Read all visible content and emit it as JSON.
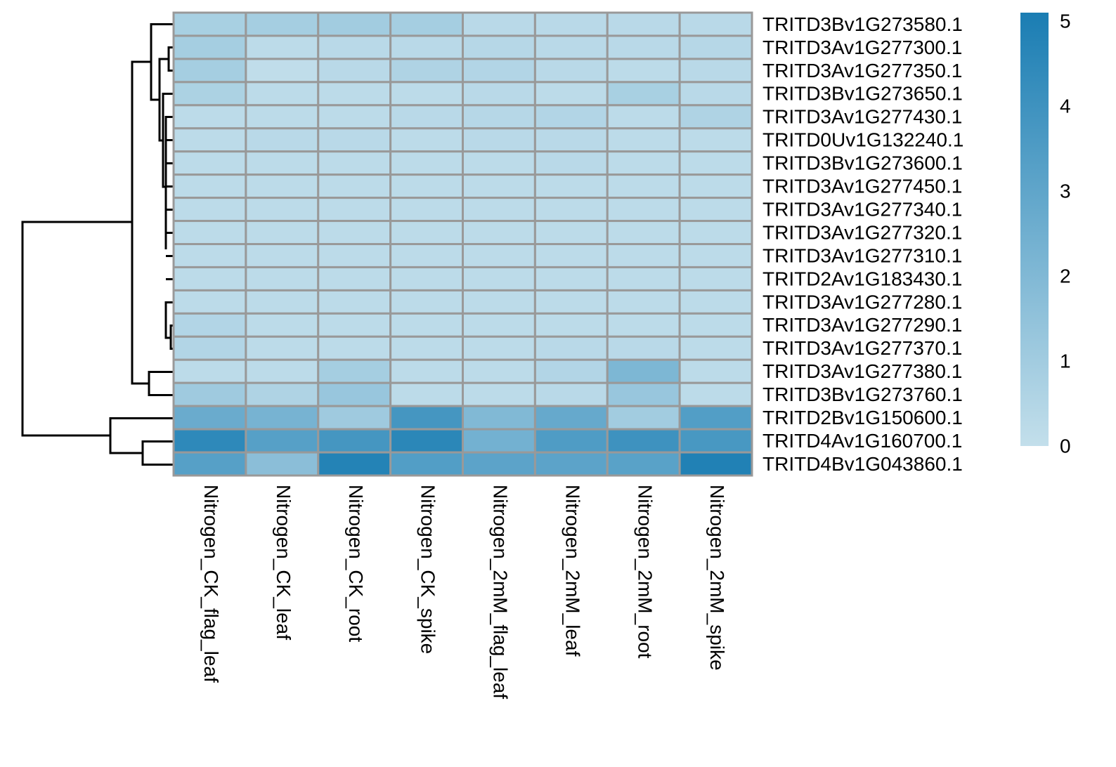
{
  "chart_data": {
    "type": "heatmap",
    "columns": [
      "Nitrogen_CK_flag_leaf",
      "Nitrogen_CK_leaf",
      "Nitrogen_CK_root",
      "Nitrogen_CK_spike",
      "Nitrogen_2mM_flag_leaf",
      "Nitrogen_2mM_leaf",
      "Nitrogen_2mM_root",
      "Nitrogen_2mM_spike"
    ],
    "rows": [
      "TRITD3Bv1G273580.1",
      "TRITD3Av1G277300.1",
      "TRITD3Av1G277350.1",
      "TRITD3Bv1G273650.1",
      "TRITD3Av1G277430.1",
      "TRITD0Uv1G132240.1",
      "TRITD3Bv1G273600.1",
      "TRITD3Av1G277450.1",
      "TRITD3Av1G277340.1",
      "TRITD3Av1G277320.1",
      "TRITD3Av1G277310.1",
      "TRITD2Av1G183430.1",
      "TRITD3Av1G277280.1",
      "TRITD3Av1G277290.1",
      "TRITD3Av1G277370.1",
      "TRITD3Av1G277380.1",
      "TRITD3Bv1G273760.1",
      "TRITD2Bv1G150600.1",
      "TRITD4Av1G160700.1",
      "TRITD4Bv1G043860.1"
    ],
    "values": [
      [
        0.8,
        0.9,
        1.0,
        0.9,
        0.3,
        0.3,
        0.3,
        0.3
      ],
      [
        0.9,
        0.2,
        0.3,
        0.3,
        0.4,
        0.3,
        0.3,
        0.4
      ],
      [
        0.9,
        0.1,
        0.3,
        0.6,
        0.5,
        0.3,
        0.2,
        0.3
      ],
      [
        0.7,
        0.2,
        0.2,
        0.2,
        0.3,
        0.2,
        0.8,
        0.3
      ],
      [
        0.2,
        0.2,
        0.2,
        0.3,
        0.4,
        0.5,
        0.2,
        0.6
      ],
      [
        0.2,
        0.3,
        0.3,
        0.2,
        0.3,
        0.3,
        0.2,
        0.2
      ],
      [
        0.2,
        0.2,
        0.2,
        0.2,
        0.2,
        0.3,
        0.2,
        0.2
      ],
      [
        0.2,
        0.2,
        0.2,
        0.2,
        0.2,
        0.2,
        0.2,
        0.2
      ],
      [
        0.2,
        0.2,
        0.2,
        0.2,
        0.2,
        0.2,
        0.2,
        0.2
      ],
      [
        0.2,
        0.2,
        0.2,
        0.2,
        0.2,
        0.2,
        0.2,
        0.2
      ],
      [
        0.2,
        0.2,
        0.2,
        0.2,
        0.2,
        0.2,
        0.2,
        0.2
      ],
      [
        0.2,
        0.2,
        0.2,
        0.2,
        0.2,
        0.2,
        0.2,
        0.2
      ],
      [
        0.2,
        0.2,
        0.2,
        0.2,
        0.2,
        0.2,
        0.2,
        0.2
      ],
      [
        0.5,
        0.2,
        0.2,
        0.2,
        0.2,
        0.2,
        0.2,
        0.2
      ],
      [
        0.5,
        0.2,
        0.2,
        0.2,
        0.2,
        0.3,
        0.3,
        0.2
      ],
      [
        0.2,
        0.2,
        0.9,
        0.2,
        0.2,
        0.5,
        2.1,
        0.2
      ],
      [
        1.1,
        0.6,
        1.3,
        0.2,
        0.2,
        0.3,
        1.3,
        0.2
      ],
      [
        2.7,
        2.3,
        1.1,
        3.8,
        2.0,
        2.8,
        1.0,
        3.4
      ],
      [
        4.5,
        3.3,
        3.8,
        4.6,
        2.4,
        3.5,
        4.0,
        3.7
      ],
      [
        3.3,
        1.7,
        4.8,
        3.4,
        3.1,
        3.1,
        3.2,
        4.9
      ]
    ],
    "colormap": [
      "#c3dfeb",
      "#1a7db3"
    ],
    "colorbar": {
      "lim": [
        0,
        5.1
      ],
      "ticks": [
        0,
        1,
        2,
        3,
        4,
        5
      ]
    }
  }
}
